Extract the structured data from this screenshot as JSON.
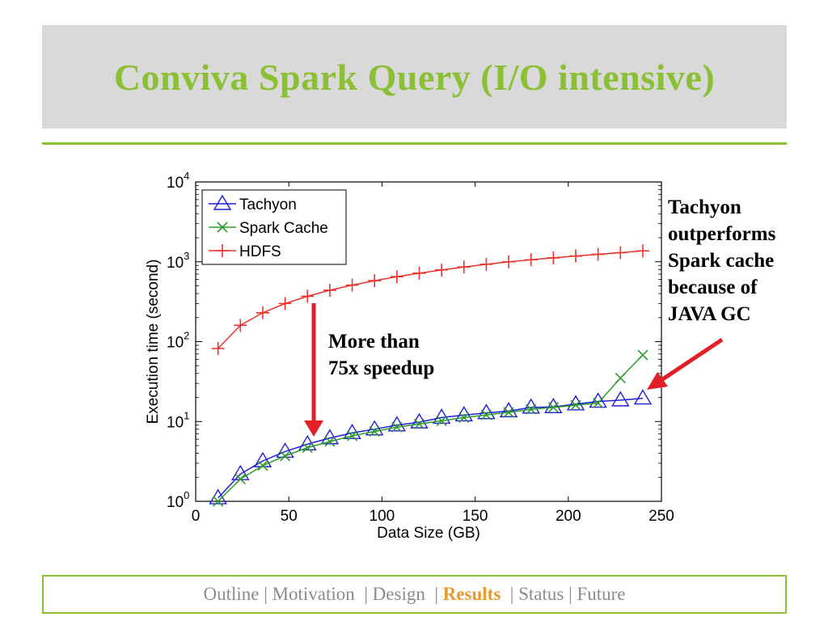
{
  "slide": {
    "title": "Conviva Spark Query (I/O intensive)",
    "accent_color": "#8bc034",
    "annotation_side": [
      "Tachyon",
      "outperforms",
      "Spark cache",
      "because of",
      "JAVA GC"
    ],
    "annotation_mid": [
      "More than",
      "75x speedup"
    ]
  },
  "nav": {
    "items": [
      {
        "label": "Outline",
        "sep": "| "
      },
      {
        "label": "Motivation",
        "sep": " | "
      },
      {
        "label": "Design",
        "sep": " | "
      },
      {
        "label": "Results",
        "sep": " | ",
        "active": true
      },
      {
        "label": "Status",
        "sep": "| "
      },
      {
        "label": "Future",
        "sep": ""
      }
    ],
    "active_color": "#e89a2e",
    "inactive_color": "#8c8c8c"
  },
  "chart_data": {
    "type": "line",
    "xlabel": "Data Size (GB)",
    "ylabel": "Execution time (second)",
    "xlim": [
      0,
      250
    ],
    "ylim": [
      1,
      10000
    ],
    "y_scale": "log",
    "x_ticks": [
      0,
      50,
      100,
      150,
      200,
      250
    ],
    "y_ticks": [
      {
        "value": 1,
        "base": "10",
        "exp": "0"
      },
      {
        "value": 10,
        "base": "10",
        "exp": "1"
      },
      {
        "value": 100,
        "base": "10",
        "exp": "2"
      },
      {
        "value": 1000,
        "base": "10",
        "exp": "3"
      },
      {
        "value": 10000,
        "base": "10",
        "exp": "4"
      }
    ],
    "legend_position": "top-left",
    "grid": false,
    "x": [
      12,
      24,
      36,
      48,
      60,
      72,
      84,
      96,
      108,
      120,
      132,
      144,
      156,
      168,
      180,
      192,
      204,
      216,
      228,
      240
    ],
    "series": [
      {
        "name": "Tachyon",
        "color": "#1f1fd6",
        "marker": "triangle",
        "values": [
          1.1,
          2.2,
          3.2,
          4.2,
          5.2,
          6.2,
          7.2,
          8.0,
          9.0,
          9.8,
          11.2,
          12.0,
          12.8,
          13.5,
          15.0,
          15.2,
          16.5,
          17.8,
          18.5,
          19.5
        ]
      },
      {
        "name": "Spark Cache",
        "color": "#2e9a2e",
        "marker": "x",
        "values": [
          1.0,
          1.9,
          2.8,
          3.7,
          4.7,
          5.6,
          6.6,
          7.5,
          8.5,
          9.3,
          10.2,
          11.2,
          12.1,
          13.0,
          14.2,
          15.0,
          16.0,
          17.0,
          35,
          68
        ]
      },
      {
        "name": "HDFS",
        "color": "#e8332e",
        "marker": "plus",
        "values": [
          82,
          160,
          230,
          300,
          370,
          440,
          510,
          580,
          650,
          720,
          790,
          860,
          930,
          1000,
          1060,
          1120,
          1180,
          1240,
          1300,
          1370
        ]
      }
    ]
  }
}
